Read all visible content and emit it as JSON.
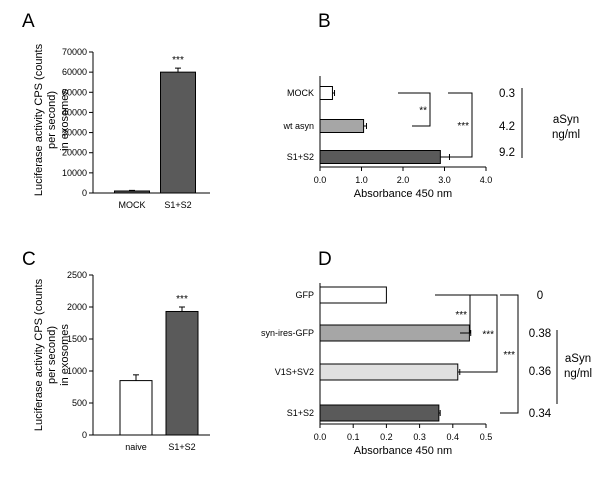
{
  "chart_data": [
    {
      "panel": "A",
      "type": "bar",
      "orientation": "vertical",
      "categories": [
        "MOCK",
        "S1+S2"
      ],
      "values": [
        1000,
        60000
      ],
      "errors": [
        300,
        2000
      ],
      "fills": [
        "#5a5a5a",
        "#5a5a5a"
      ],
      "ylabel": "Luciferase activity CPS (counts per second) in exosomes",
      "ylim": [
        0,
        70000
      ],
      "yticks": [
        "0",
        "10000",
        "20000",
        "30000",
        "40000",
        "50000",
        "60000",
        "70000"
      ],
      "significance": [
        {
          "label": "***",
          "category": "S1+S2"
        }
      ]
    },
    {
      "panel": "B",
      "type": "bar",
      "orientation": "horizontal",
      "categories": [
        "MOCK",
        "wt asyn",
        "S1+S2"
      ],
      "values": [
        0.3,
        1.05,
        2.9
      ],
      "errors": [
        0.05,
        0.07,
        0.22
      ],
      "fills": [
        "#ffffff",
        "#a6a6a6",
        "#5a5a5a"
      ],
      "xlabel": "Absorbance 450 nm",
      "xlim": [
        0,
        4
      ],
      "xticks": [
        "0.0",
        "1.0",
        "2.0",
        "3.0",
        "4.0"
      ],
      "significance": [
        {
          "label": "**",
          "between": [
            "MOCK",
            "wt asyn"
          ]
        },
        {
          "label": "***",
          "between": [
            "MOCK",
            "S1+S2"
          ]
        }
      ],
      "side_values": [
        "0.3",
        "4.2",
        "9.2"
      ],
      "side_label_1": "aSyn",
      "side_label_2": "ng/ml"
    },
    {
      "panel": "C",
      "type": "bar",
      "orientation": "vertical",
      "categories": [
        "naive",
        "S1+S2"
      ],
      "values": [
        850,
        1930
      ],
      "errors": [
        90,
        70
      ],
      "fills": [
        "#ffffff",
        "#5a5a5a"
      ],
      "ylabel": "Luciferase activity CPS (counts per second) in exosomes",
      "ylim": [
        0,
        2500
      ],
      "yticks": [
        "0",
        "500",
        "1000",
        "1500",
        "2000",
        "2500"
      ],
      "significance": [
        {
          "label": "***",
          "category": "S1+S2"
        }
      ]
    },
    {
      "panel": "D",
      "type": "bar",
      "orientation": "horizontal",
      "categories": [
        "GFP",
        "syn-ires-GFP",
        "V1S+SV2",
        "S1+S2"
      ],
      "values": [
        0.2,
        0.45,
        0.415,
        0.358
      ],
      "errors": [
        0.0,
        0.004,
        0.006,
        0.004
      ],
      "fills": [
        "#ffffff",
        "#a6a6a6",
        "#e0e0e0",
        "#5a5a5a"
      ],
      "xlabel": "Absorbance 450 nm",
      "xlim": [
        0,
        0.5
      ],
      "xticks": [
        "0.0",
        "0.1",
        "0.2",
        "0.3",
        "0.4",
        "0.5"
      ],
      "significance": [
        {
          "label": "***",
          "between": [
            "GFP",
            "syn-ires-GFP"
          ]
        },
        {
          "label": "***",
          "between": [
            "GFP",
            "V1S+SV2"
          ]
        },
        {
          "label": "***",
          "between": [
            "GFP",
            "S1+S2"
          ]
        }
      ],
      "side_values": [
        "0",
        "0.38",
        "0.36",
        "0.34"
      ],
      "side_label_1": "aSyn",
      "side_label_2": "ng/ml"
    }
  ]
}
